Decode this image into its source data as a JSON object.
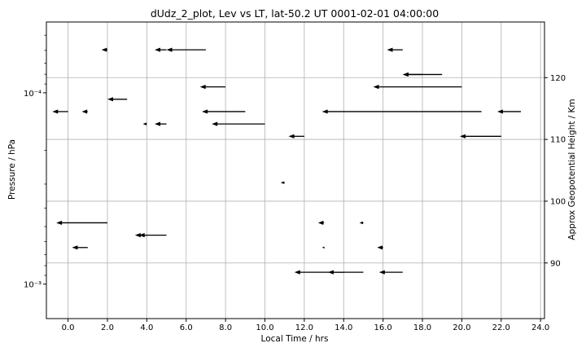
{
  "chart_data": {
    "type": "quiver",
    "title": "dUdz_2_plot, Lev vs LT, lat-50.2 UT 0001-02-01 04:00:00",
    "xlabel": "Local Time / hrs",
    "ylabel": "Pressure / hPa",
    "y2label": "Approx Geopotential Height / Km",
    "xlim": [
      -1.1,
      24.2
    ],
    "ylim_log10": [
      -2.82,
      -4.37
    ],
    "y_scale": "log",
    "y2lim": [
      81,
      129
    ],
    "x_ticks": [
      0,
      2,
      4,
      6,
      8,
      10,
      12,
      14,
      16,
      18,
      20,
      22,
      24
    ],
    "x_tick_labels": [
      "0.0",
      "2.0",
      "4.0",
      "6.0",
      "8.0",
      "10.0",
      "12.0",
      "14.0",
      "16.0",
      "18.0",
      "20.0",
      "22.0",
      "24.0"
    ],
    "y_major_ticks_log10": [
      -4,
      -3
    ],
    "y_tick_labels": [
      "10⁻⁴",
      "10⁻³"
    ],
    "y_minor_ticks_log10": [
      -4.30103,
      -4.22185,
      -4.1549,
      -4.09691,
      -4.04576,
      -3.69897,
      -3.52288,
      -3.39794,
      -3.30103,
      -3.22185,
      -3.1549,
      -3.09691,
      -3.04576,
      -2.69897
    ],
    "y2_ticks": [
      90,
      100,
      110,
      120
    ],
    "y2_tick_labels": [
      "90",
      "100",
      "110",
      "120"
    ],
    "grid": true,
    "arrows": [
      {
        "x": 2.0,
        "h": 124.5,
        "u": -0.3
      },
      {
        "x": 5.0,
        "h": 124.5,
        "u": -0.6
      },
      {
        "x": 7.0,
        "h": 124.5,
        "u": -2.0
      },
      {
        "x": 17.0,
        "h": 124.5,
        "u": -0.8
      },
      {
        "x": 18.0,
        "h": 120.5,
        "u": -1.0
      },
      {
        "x": 19.0,
        "h": 120.5,
        "u": -2.0
      },
      {
        "x": 8.0,
        "h": 118.5,
        "u": -1.3
      },
      {
        "x": 20.0,
        "h": 118.5,
        "u": -4.5
      },
      {
        "x": 3.0,
        "h": 116.5,
        "u": -1.0
      },
      {
        "x": 0.0,
        "h": 114.5,
        "u": -0.8
      },
      {
        "x": 1.0,
        "h": 114.5,
        "u": -0.3
      },
      {
        "x": 9.0,
        "h": 114.5,
        "u": -2.2
      },
      {
        "x": 21.0,
        "h": 114.5,
        "u": -8.1
      },
      {
        "x": 23.0,
        "h": 114.5,
        "u": -1.2
      },
      {
        "x": 4.0,
        "h": 112.5,
        "u": -0.2
      },
      {
        "x": 5.0,
        "h": 112.5,
        "u": -0.6
      },
      {
        "x": 10.0,
        "h": 112.5,
        "u": -2.7
      },
      {
        "x": 12.0,
        "h": 110.5,
        "u": -0.8
      },
      {
        "x": 22.0,
        "h": 110.5,
        "u": -2.1
      },
      {
        "x": 11.0,
        "h": 103.0,
        "u": -0.2
      },
      {
        "x": 2.0,
        "h": 96.5,
        "u": -2.6
      },
      {
        "x": 13.0,
        "h": 96.5,
        "u": -0.3
      },
      {
        "x": 15.0,
        "h": 96.5,
        "u": -0.2
      },
      {
        "x": 4.0,
        "h": 94.5,
        "u": -0.6
      },
      {
        "x": 5.0,
        "h": 94.5,
        "u": -1.4
      },
      {
        "x": 1.0,
        "h": 92.5,
        "u": -0.8
      },
      {
        "x": 13.0,
        "h": 92.5,
        "u": -0.1
      },
      {
        "x": 16.0,
        "h": 92.5,
        "u": -0.3
      },
      {
        "x": 14.0,
        "h": 88.5,
        "u": -2.5
      },
      {
        "x": 15.0,
        "h": 88.5,
        "u": -1.8
      },
      {
        "x": 17.0,
        "h": 88.5,
        "u": -1.2
      }
    ]
  }
}
